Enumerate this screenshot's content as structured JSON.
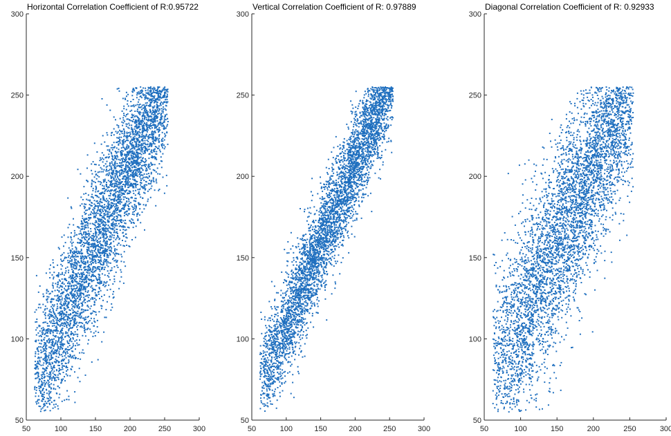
{
  "chart_data": [
    {
      "type": "scatter",
      "title": "Horizontal Correlation Coefficient of R:0.95722",
      "xlim": [
        50,
        300
      ],
      "ylim": [
        50,
        300
      ],
      "xticks": [
        50,
        100,
        150,
        200,
        250,
        300
      ],
      "yticks": [
        50,
        100,
        150,
        200,
        250,
        300
      ],
      "grid": false,
      "marker_color": "#1f6fbf",
      "series": [
        {
          "points_summary": {
            "correlation": 0.95722,
            "x_range": [
              62,
              255
            ],
            "y_range": [
              55,
              255
            ],
            "spread": 20,
            "count": 4500
          },
          "values": [
            [
              65,
              70
            ],
            [
              70,
              75
            ],
            [
              80,
              82
            ],
            [
              90,
              92
            ],
            [
              100,
              105
            ],
            [
              110,
              112
            ],
            [
              120,
              125
            ],
            [
              130,
              135
            ],
            [
              140,
              145
            ],
            [
              150,
              155
            ],
            [
              160,
              165
            ],
            [
              170,
              175
            ],
            [
              180,
              185
            ],
            [
              190,
              195
            ],
            [
              200,
              205
            ],
            [
              210,
              215
            ],
            [
              220,
              225
            ],
            [
              230,
              235
            ],
            [
              240,
              242
            ],
            [
              250,
              250
            ]
          ]
        }
      ]
    },
    {
      "type": "scatter",
      "title": "Vertical Correlation Coefficient of R:   0.97889",
      "xlim": [
        50,
        300
      ],
      "ylim": [
        50,
        300
      ],
      "xticks": [
        50,
        100,
        150,
        200,
        250,
        300
      ],
      "yticks": [
        50,
        100,
        150,
        200,
        250,
        300
      ],
      "grid": false,
      "marker_color": "#1f6fbf",
      "series": [
        {
          "points_summary": {
            "correlation": 0.97889,
            "x_range": [
              62,
              255
            ],
            "y_range": [
              55,
              255
            ],
            "spread": 14,
            "count": 4500
          },
          "values": [
            [
              65,
              68
            ],
            [
              70,
              72
            ],
            [
              80,
              80
            ],
            [
              90,
              90
            ],
            [
              100,
              100
            ],
            [
              110,
              110
            ],
            [
              120,
              120
            ],
            [
              130,
              130
            ],
            [
              140,
              140
            ],
            [
              150,
              150
            ],
            [
              160,
              160
            ],
            [
              170,
              170
            ],
            [
              180,
              180
            ],
            [
              190,
              190
            ],
            [
              200,
              200
            ],
            [
              210,
              210
            ],
            [
              220,
              220
            ],
            [
              230,
              230
            ],
            [
              240,
              240
            ],
            [
              250,
              250
            ]
          ]
        }
      ]
    },
    {
      "type": "scatter",
      "title": "Diagonal Correlation Coefficient of R:    0.92933",
      "xlim": [
        50,
        300
      ],
      "ylim": [
        50,
        300
      ],
      "xticks": [
        50,
        100,
        150,
        200,
        250,
        300
      ],
      "yticks": [
        50,
        100,
        150,
        200,
        250,
        300
      ],
      "grid": false,
      "marker_color": "#1f6fbf",
      "series": [
        {
          "points_summary": {
            "correlation": 0.92933,
            "x_range": [
              62,
              255
            ],
            "y_range": [
              55,
              255
            ],
            "spread": 26,
            "count": 4500
          },
          "values": [
            [
              65,
              72
            ],
            [
              70,
              78
            ],
            [
              80,
              85
            ],
            [
              90,
              95
            ],
            [
              100,
              105
            ],
            [
              110,
              115
            ],
            [
              120,
              122
            ],
            [
              130,
              132
            ],
            [
              140,
              142
            ],
            [
              150,
              152
            ],
            [
              160,
              162
            ],
            [
              170,
              172
            ],
            [
              180,
              182
            ],
            [
              190,
              192
            ],
            [
              200,
              202
            ],
            [
              210,
              212
            ],
            [
              220,
              222
            ],
            [
              230,
              232
            ],
            [
              240,
              240
            ],
            [
              250,
              248
            ]
          ]
        }
      ]
    }
  ]
}
